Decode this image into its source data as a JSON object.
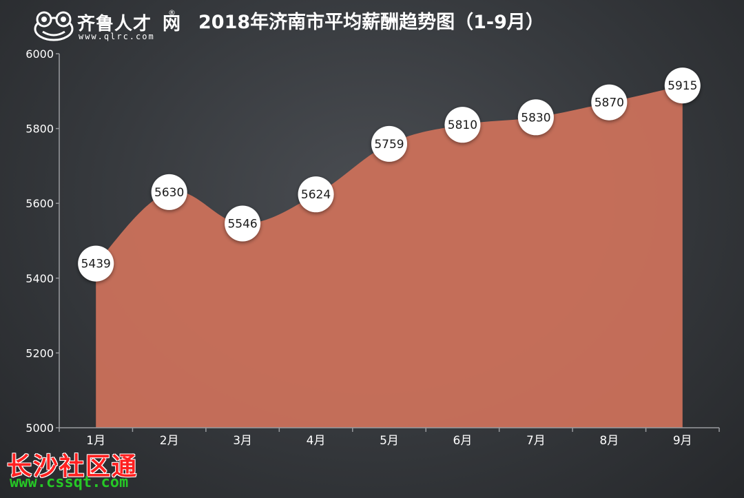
{
  "logo": {
    "name": "齐鲁人才",
    "reg": "®",
    "name2": "网",
    "url": "www.qlrc.com"
  },
  "watermark": {
    "text": "长沙社区通",
    "url": "www.cssqt.com"
  },
  "colors": {
    "area": "#c8705a",
    "label_bg": "#ffffff",
    "axis": "#9a9ca0"
  },
  "chart_data": {
    "type": "area",
    "title": "2018年济南市平均薪酬趋势图（1-9月）",
    "categories": [
      "1月",
      "2月",
      "3月",
      "4月",
      "5月",
      "6月",
      "7月",
      "8月",
      "9月"
    ],
    "values": [
      5439,
      5630,
      5546,
      5624,
      5759,
      5810,
      5830,
      5870,
      5915
    ],
    "ylim": [
      5000,
      6000
    ],
    "yticks": [
      5000,
      5200,
      5400,
      5600,
      5800,
      6000
    ],
    "grid": false,
    "legend": "none"
  }
}
